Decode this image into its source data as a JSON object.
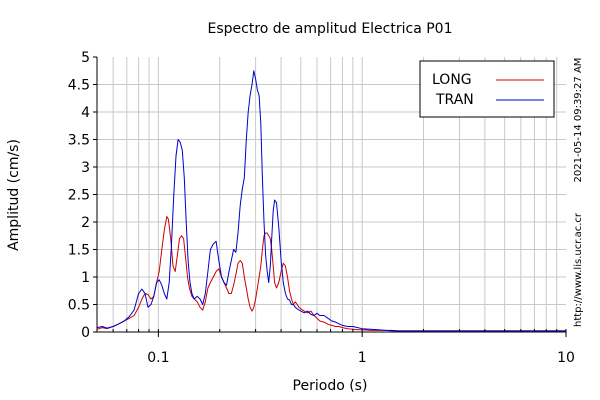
{
  "chart_data": {
    "type": "line",
    "title": "Espectro de amplitud Electrica P01",
    "xlabel": "Periodo (s)",
    "ylabel": "Amplitud (cm/s)",
    "xscale": "log",
    "xlim": [
      0.05,
      10
    ],
    "ylim": [
      0,
      5
    ],
    "x_ticks": [
      {
        "value": 0.1,
        "label": "0.1"
      },
      {
        "value": 1,
        "label": "1"
      },
      {
        "value": 10,
        "label": "10"
      }
    ],
    "y_ticks": [
      "0",
      "0.5",
      "1",
      "1.5",
      "2",
      "2.5",
      "3",
      "3.5",
      "4",
      "4.5",
      "5"
    ],
    "grid": true,
    "legend_position": "top-right",
    "side_text_top": "2021-05-14 09:39:27 AM",
    "side_text_bottom": "http://www.lis.ucr.ac.cr",
    "series": [
      {
        "name": "LONG",
        "color": "#cc0000",
        "x": [
          0.05,
          0.053,
          0.056,
          0.06,
          0.064,
          0.068,
          0.072,
          0.076,
          0.08,
          0.083,
          0.086,
          0.089,
          0.092,
          0.095,
          0.098,
          0.101,
          0.104,
          0.107,
          0.11,
          0.112,
          0.115,
          0.118,
          0.121,
          0.124,
          0.127,
          0.13,
          0.133,
          0.136,
          0.139,
          0.142,
          0.146,
          0.15,
          0.155,
          0.16,
          0.165,
          0.17,
          0.175,
          0.18,
          0.186,
          0.192,
          0.198,
          0.204,
          0.21,
          0.216,
          0.222,
          0.228,
          0.234,
          0.24,
          0.246,
          0.252,
          0.258,
          0.264,
          0.27,
          0.276,
          0.282,
          0.288,
          0.294,
          0.3,
          0.306,
          0.312,
          0.318,
          0.324,
          0.33,
          0.336,
          0.342,
          0.348,
          0.354,
          0.36,
          0.366,
          0.372,
          0.38,
          0.39,
          0.4,
          0.41,
          0.42,
          0.43,
          0.44,
          0.45,
          0.46,
          0.47,
          0.48,
          0.49,
          0.5,
          0.52,
          0.54,
          0.56,
          0.58,
          0.6,
          0.62,
          0.65,
          0.68,
          0.71,
          0.74,
          0.77,
          0.8,
          0.85,
          0.9,
          0.95,
          1.0,
          1.1,
          1.2,
          1.3,
          1.4,
          1.5,
          1.7,
          2.0,
          2.5,
          3.0,
          4.0,
          5.0,
          7.0,
          10.0
        ],
        "values": [
          0.05,
          0.08,
          0.06,
          0.1,
          0.15,
          0.2,
          0.25,
          0.3,
          0.45,
          0.6,
          0.7,
          0.68,
          0.6,
          0.65,
          0.9,
          1.1,
          1.5,
          1.85,
          2.1,
          2.05,
          1.7,
          1.2,
          1.1,
          1.4,
          1.7,
          1.75,
          1.7,
          1.35,
          1.0,
          0.8,
          0.65,
          0.6,
          0.55,
          0.45,
          0.4,
          0.55,
          0.8,
          0.9,
          1.0,
          1.1,
          1.15,
          1.0,
          0.9,
          0.8,
          0.7,
          0.7,
          0.85,
          1.05,
          1.25,
          1.3,
          1.25,
          1.0,
          0.8,
          0.6,
          0.45,
          0.38,
          0.45,
          0.6,
          0.8,
          1.0,
          1.2,
          1.5,
          1.75,
          1.8,
          1.8,
          1.75,
          1.7,
          1.5,
          1.2,
          0.9,
          0.8,
          0.9,
          1.1,
          1.25,
          1.2,
          1.0,
          0.75,
          0.6,
          0.5,
          0.55,
          0.5,
          0.45,
          0.42,
          0.38,
          0.35,
          0.38,
          0.3,
          0.25,
          0.2,
          0.18,
          0.14,
          0.12,
          0.1,
          0.1,
          0.08,
          0.06,
          0.05,
          0.04,
          0.04,
          0.03,
          0.03,
          0.03,
          0.02,
          0.02,
          0.02,
          0.02,
          0.02,
          0.02,
          0.02,
          0.02,
          0.02,
          0.02
        ]
      },
      {
        "name": "TRAN",
        "color": "#0000cc",
        "x": [
          0.05,
          0.053,
          0.056,
          0.06,
          0.064,
          0.068,
          0.072,
          0.076,
          0.08,
          0.083,
          0.086,
          0.089,
          0.092,
          0.095,
          0.098,
          0.101,
          0.104,
          0.107,
          0.11,
          0.113,
          0.116,
          0.119,
          0.122,
          0.125,
          0.128,
          0.131,
          0.134,
          0.137,
          0.14,
          0.143,
          0.146,
          0.15,
          0.155,
          0.16,
          0.165,
          0.17,
          0.175,
          0.18,
          0.186,
          0.192,
          0.198,
          0.204,
          0.21,
          0.216,
          0.222,
          0.228,
          0.234,
          0.24,
          0.246,
          0.252,
          0.258,
          0.264,
          0.27,
          0.276,
          0.282,
          0.288,
          0.294,
          0.3,
          0.306,
          0.312,
          0.318,
          0.324,
          0.33,
          0.336,
          0.342,
          0.348,
          0.354,
          0.36,
          0.366,
          0.372,
          0.38,
          0.39,
          0.4,
          0.41,
          0.42,
          0.43,
          0.44,
          0.45,
          0.46,
          0.47,
          0.48,
          0.49,
          0.5,
          0.52,
          0.54,
          0.56,
          0.58,
          0.6,
          0.62,
          0.65,
          0.68,
          0.71,
          0.74,
          0.77,
          0.8,
          0.85,
          0.9,
          0.95,
          1.0,
          1.1,
          1.2,
          1.3,
          1.4,
          1.5,
          1.7,
          2.0,
          2.5,
          3.0,
          4.0,
          5.0,
          7.0,
          10.0
        ],
        "values": [
          0.08,
          0.1,
          0.07,
          0.1,
          0.15,
          0.2,
          0.28,
          0.4,
          0.7,
          0.78,
          0.7,
          0.45,
          0.5,
          0.65,
          0.9,
          0.95,
          0.85,
          0.7,
          0.6,
          0.9,
          1.6,
          2.5,
          3.2,
          3.5,
          3.45,
          3.3,
          2.8,
          2.0,
          1.3,
          0.9,
          0.7,
          0.6,
          0.65,
          0.6,
          0.5,
          0.7,
          1.1,
          1.5,
          1.6,
          1.65,
          1.3,
          1.0,
          0.9,
          0.85,
          1.1,
          1.3,
          1.5,
          1.45,
          1.8,
          2.3,
          2.6,
          2.8,
          3.5,
          4.0,
          4.3,
          4.5,
          4.75,
          4.6,
          4.4,
          4.3,
          3.8,
          2.8,
          2.0,
          1.4,
          1.1,
          0.9,
          1.2,
          1.7,
          2.2,
          2.4,
          2.35,
          1.9,
          1.3,
          0.9,
          0.7,
          0.6,
          0.58,
          0.5,
          0.5,
          0.45,
          0.42,
          0.4,
          0.38,
          0.35,
          0.38,
          0.32,
          0.3,
          0.34,
          0.3,
          0.3,
          0.25,
          0.2,
          0.18,
          0.15,
          0.12,
          0.1,
          0.1,
          0.08,
          0.06,
          0.05,
          0.04,
          0.03,
          0.03,
          0.02,
          0.02,
          0.02,
          0.02,
          0.02,
          0.02,
          0.02,
          0.02,
          0.02
        ]
      }
    ]
  }
}
